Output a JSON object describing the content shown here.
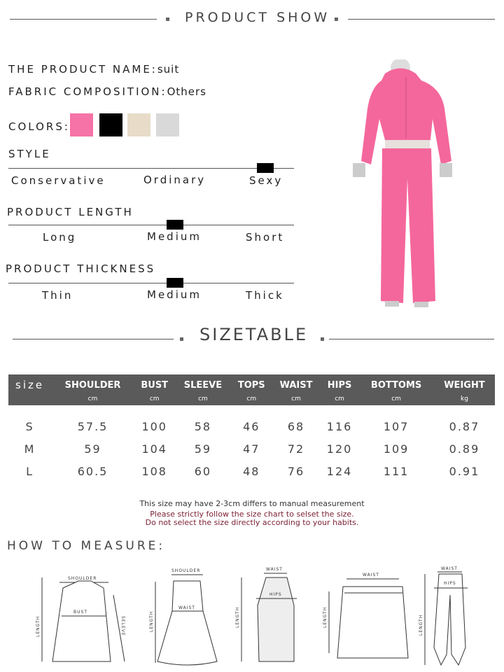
{
  "sections": {
    "product_show": "PRODUCT SHOW",
    "sizetable": "SIZETABLE",
    "how_to_measure": "HOW TO MEASURE:"
  },
  "product": {
    "name_label": "THE PRODUCT NAME:",
    "name_value": "suit",
    "fabric_label": "FABRIC COMPOSITION:",
    "fabric_value": "Others",
    "colors_label": "COLORS:",
    "colors": [
      "#f573a6",
      "#000000",
      "#e8dcc8",
      "#d9d9d9"
    ]
  },
  "style": {
    "label": "STYLE",
    "options": [
      "Conservative",
      "Ordinary",
      "Sexy"
    ],
    "selected": "Sexy"
  },
  "length": {
    "label": "PRODUCT LENGTH",
    "options": [
      "Long",
      "Medium",
      "Short"
    ],
    "selected": "Medium"
  },
  "thickness": {
    "label": "PRODUCT THICKNESS",
    "options": [
      "Thin",
      "Medium",
      "Thick"
    ],
    "selected": "Medium"
  },
  "table": {
    "headers": [
      "size",
      "SHOULDER",
      "BUST",
      "SLEEVE",
      "TOPS",
      "WAIST",
      "HIPS",
      "BOTTOMS",
      "WEIGHT"
    ],
    "units": [
      "",
      "cm",
      "cm",
      "cm",
      "cm",
      "cm",
      "cm",
      "cm",
      "kg"
    ],
    "rows": [
      [
        "S",
        "57.5",
        "100",
        "58",
        "46",
        "68",
        "116",
        "107",
        "0.87"
      ],
      [
        "M",
        "59",
        "104",
        "59",
        "47",
        "72",
        "120",
        "109",
        "0.89"
      ],
      [
        "L",
        "60.5",
        "108",
        "60",
        "48",
        "76",
        "124",
        "111",
        "0.91"
      ]
    ]
  },
  "notes": {
    "line1": "This size may have 2-3cm differs to manual measurement",
    "line2": "Please strictly follow the size chart to selset the size.",
    "line3": "Do not select the size directly according to your habits."
  },
  "diagrams": {
    "shoulder": "SHOULDER",
    "bust": "BUST",
    "sleeve": "SELEVE",
    "length": "LENGTH",
    "waist": "WAIST",
    "hips": "HIPS"
  },
  "colors": {
    "header_bg": "#5a5a5a",
    "note_red": "#7a1f33",
    "garment_pink": "#f4679c"
  }
}
